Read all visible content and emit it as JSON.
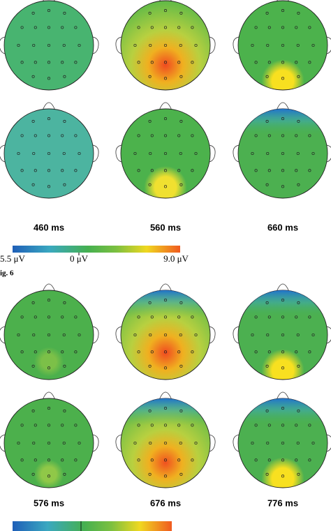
{
  "figure_top": {
    "time_labels": [
      "460 ms",
      "560 ms",
      "660 ms"
    ],
    "colorbar": {
      "min_label": "5.5 μV",
      "zero_label": "0 μV",
      "max_label": "9.0 μV"
    }
  },
  "caption": "ig. 6",
  "figure_bottom": {
    "time_labels": [
      "576 ms",
      "676 ms",
      "776 ms"
    ]
  }
}
